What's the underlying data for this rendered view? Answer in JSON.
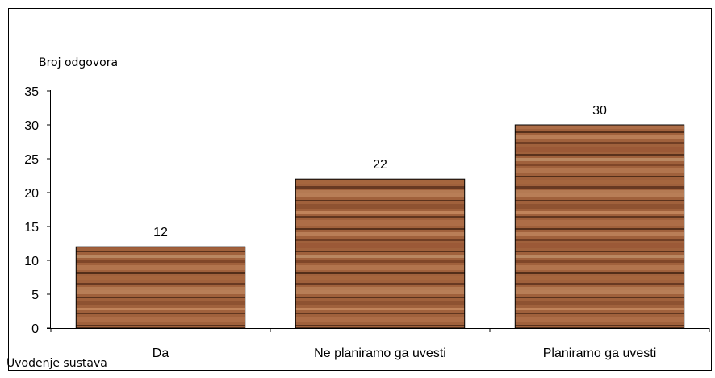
{
  "chart_data": {
    "type": "bar",
    "categories": [
      "Da",
      "Ne planiramo ga uvesti",
      "Planiramo ga uvesti"
    ],
    "values": [
      12,
      22,
      30
    ],
    "data_labels": [
      "12",
      "22",
      "30"
    ],
    "ylabel": "Broj odgovora",
    "xlabel": "Uvođenje sustava",
    "ylim": [
      0,
      35
    ],
    "yticks": [
      0,
      5,
      10,
      15,
      20,
      25,
      30,
      35
    ],
    "grid": false,
    "legend": "none",
    "bar_fill": "wood-texture",
    "colors": {
      "wood_base": "#9b5a37",
      "wood_dark": "#4e2a17",
      "wood_light": "#c98d63",
      "border": "#000000"
    }
  }
}
